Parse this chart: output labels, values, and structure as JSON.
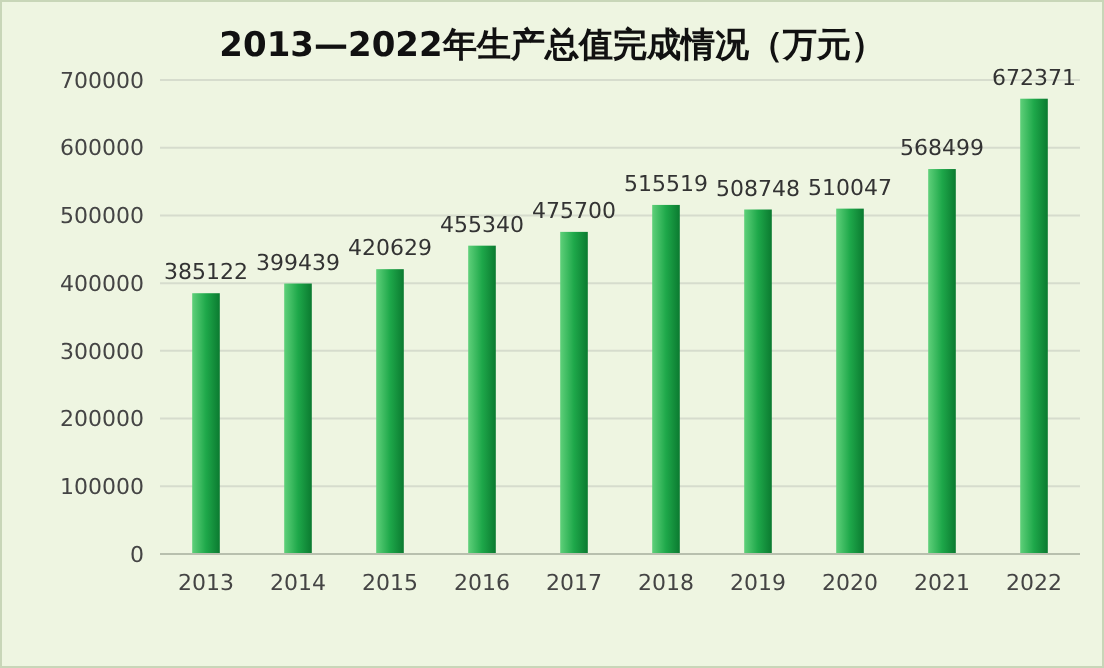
{
  "chart_data": {
    "type": "bar",
    "title": "2013—2022年生产总值完成情况（万元）",
    "categories": [
      "2013",
      "2014",
      "2015",
      "2016",
      "2017",
      "2018",
      "2019",
      "2020",
      "2021",
      "2022"
    ],
    "values": [
      385122,
      399439,
      420629,
      455340,
      475700,
      515519,
      508748,
      510047,
      568499,
      672371
    ],
    "color": "#1ea84a",
    "ylim": [
      0,
      700000
    ],
    "yticks": [
      0,
      100000,
      200000,
      300000,
      400000,
      500000,
      600000,
      700000
    ],
    "grid": "y",
    "data_labels": true
  }
}
